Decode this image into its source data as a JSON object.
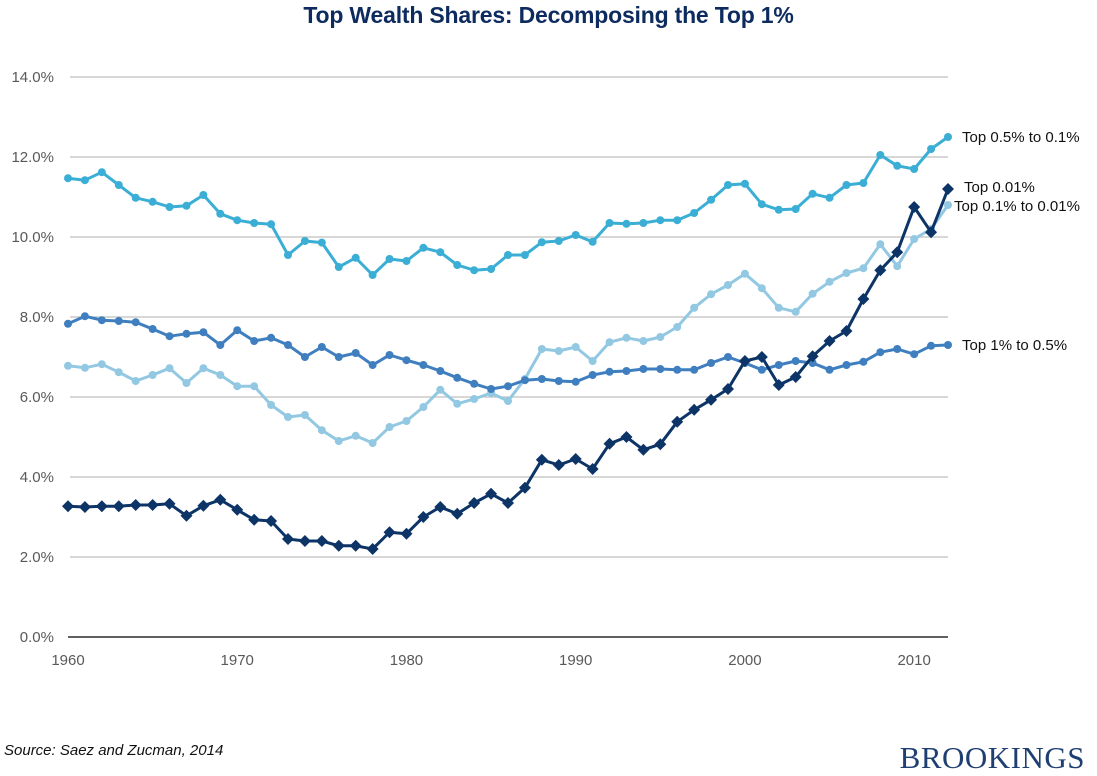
{
  "chart_data": {
    "type": "line",
    "title": "Top Wealth Shares: Decomposing the Top 1%",
    "xlabel": "",
    "ylabel": "",
    "x": [
      1960,
      1961,
      1962,
      1963,
      1964,
      1965,
      1966,
      1967,
      1968,
      1969,
      1970,
      1971,
      1972,
      1973,
      1974,
      1975,
      1976,
      1977,
      1978,
      1979,
      1980,
      1981,
      1982,
      1983,
      1984,
      1985,
      1986,
      1987,
      1988,
      1989,
      1990,
      1991,
      1992,
      1993,
      1994,
      1995,
      1996,
      1997,
      1998,
      1999,
      2000,
      2001,
      2002,
      2003,
      2004,
      2005,
      2006,
      2007,
      2008,
      2009,
      2010,
      2011,
      2012
    ],
    "xlim": [
      1960,
      2012
    ],
    "ylim": [
      0,
      14
    ],
    "y_ticks": [
      "0.0%",
      "2.0%",
      "4.0%",
      "6.0%",
      "8.0%",
      "10.0%",
      "12.0%",
      "14.0%"
    ],
    "y_tick_values": [
      0,
      2,
      4,
      6,
      8,
      10,
      12,
      14
    ],
    "x_ticks": [
      "1960",
      "1970",
      "1980",
      "1990",
      "2000",
      "2010"
    ],
    "x_tick_values": [
      1960,
      1970,
      1980,
      1990,
      2000,
      2010
    ],
    "grid": "horizontal",
    "legend": "inline-right",
    "series": [
      {
        "name": "Top 0.5% to 0.1%",
        "color": "#3aaed4",
        "marker": "circle",
        "values": [
          11.47,
          11.42,
          11.62,
          11.3,
          10.98,
          10.88,
          10.75,
          10.78,
          11.05,
          10.58,
          10.42,
          10.35,
          10.32,
          9.55,
          9.9,
          9.86,
          9.25,
          9.48,
          9.05,
          9.45,
          9.4,
          9.73,
          9.62,
          9.3,
          9.17,
          9.2,
          9.55,
          9.55,
          9.87,
          9.9,
          10.05,
          9.88,
          10.35,
          10.33,
          10.35,
          10.42,
          10.42,
          10.6,
          10.93,
          11.3,
          11.33,
          10.82,
          10.68,
          10.7,
          11.08,
          10.98,
          11.3,
          11.35,
          12.05,
          11.78,
          11.7,
          12.2,
          12.5
        ]
      },
      {
        "name": "Top 0.01%",
        "color": "#0d3466",
        "marker": "diamond",
        "values": [
          3.27,
          3.25,
          3.27,
          3.27,
          3.3,
          3.3,
          3.33,
          3.03,
          3.28,
          3.43,
          3.18,
          2.93,
          2.9,
          2.45,
          2.4,
          2.4,
          2.28,
          2.28,
          2.2,
          2.62,
          2.58,
          3.0,
          3.25,
          3.08,
          3.35,
          3.58,
          3.35,
          3.73,
          4.43,
          4.3,
          4.45,
          4.2,
          4.83,
          5.0,
          4.68,
          4.82,
          5.38,
          5.68,
          5.93,
          6.2,
          6.9,
          7.0,
          6.3,
          6.5,
          7.02,
          7.4,
          7.65,
          8.45,
          9.17,
          9.62,
          10.75,
          10.12,
          11.2
        ]
      },
      {
        "name": "Top 0.1% to 0.01%",
        "color": "#92c8e2",
        "marker": "circle",
        "values": [
          6.78,
          6.73,
          6.82,
          6.62,
          6.4,
          6.55,
          6.72,
          6.35,
          6.72,
          6.55,
          6.27,
          6.27,
          5.8,
          5.5,
          5.55,
          5.17,
          4.9,
          5.03,
          4.85,
          5.25,
          5.4,
          5.75,
          6.18,
          5.83,
          5.95,
          6.1,
          5.9,
          6.45,
          7.2,
          7.15,
          7.25,
          6.9,
          7.37,
          7.48,
          7.4,
          7.5,
          7.75,
          8.23,
          8.57,
          8.8,
          9.08,
          8.72,
          8.23,
          8.13,
          8.58,
          8.88,
          9.1,
          9.22,
          9.82,
          9.27,
          9.95,
          10.2,
          10.8
        ]
      },
      {
        "name": "Top 1% to 0.5%",
        "color": "#3f7fbf",
        "marker": "circle",
        "values": [
          7.83,
          8.02,
          7.92,
          7.9,
          7.87,
          7.7,
          7.52,
          7.58,
          7.62,
          7.3,
          7.67,
          7.4,
          7.48,
          7.3,
          7.0,
          7.25,
          7.0,
          7.1,
          6.8,
          7.05,
          6.92,
          6.8,
          6.65,
          6.48,
          6.33,
          6.2,
          6.27,
          6.42,
          6.45,
          6.4,
          6.38,
          6.55,
          6.63,
          6.65,
          6.7,
          6.7,
          6.68,
          6.68,
          6.85,
          7.0,
          6.85,
          6.68,
          6.8,
          6.9,
          6.85,
          6.68,
          6.8,
          6.88,
          7.12,
          7.2,
          7.07,
          7.28,
          7.3
        ]
      }
    ]
  },
  "footer": {
    "source": "Source: Saez and Zucman, 2014",
    "brand": "BROOKINGS"
  }
}
